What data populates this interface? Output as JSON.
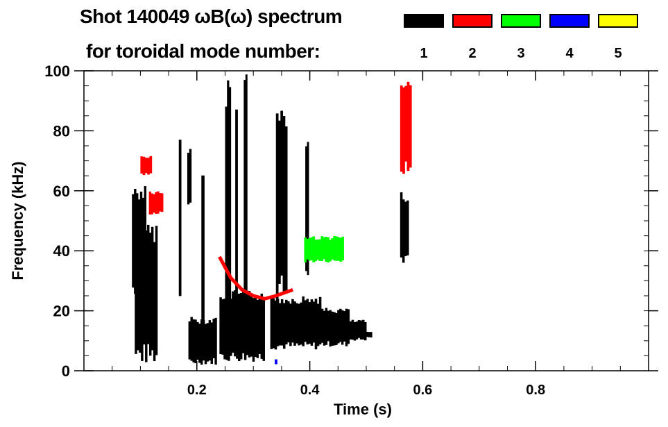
{
  "chart_data": {
    "type": "heatmap",
    "title": "Shot 140049 ωB(ω) spectrum",
    "subtitle": "for toroidal mode number:",
    "xlabel": "Time (s)",
    "ylabel": "Frequency (kHz)",
    "xlim": [
      0,
      1.0
    ],
    "ylim": [
      0,
      100
    ],
    "xticks": [
      {
        "v": 0.2,
        "label": "0.2"
      },
      {
        "v": 0.4,
        "label": "0.4"
      },
      {
        "v": 0.6,
        "label": "0.6"
      },
      {
        "v": 0.8,
        "label": "0.8"
      }
    ],
    "yticks": [
      {
        "v": 0,
        "label": "0"
      },
      {
        "v": 20,
        "label": "20"
      },
      {
        "v": 40,
        "label": "40"
      },
      {
        "v": 60,
        "label": "60"
      },
      {
        "v": 80,
        "label": "80"
      },
      {
        "v": 100,
        "label": "100"
      }
    ],
    "legend": [
      {
        "mode": "1",
        "color": "#000000"
      },
      {
        "mode": "2",
        "color": "#ff0000"
      },
      {
        "mode": "3",
        "color": "#00ff00"
      },
      {
        "mode": "4",
        "color": "#0000ff"
      },
      {
        "mode": "5",
        "color": "#ffff00"
      }
    ],
    "legend_placement": "top-right",
    "patches": [
      {
        "mode": "1",
        "t": [
          0.085,
          0.11
        ],
        "f": [
          25,
          62
        ]
      },
      {
        "mode": "1",
        "t": [
          0.09,
          0.13
        ],
        "f": [
          2,
          50
        ]
      },
      {
        "mode": "1",
        "t": [
          0.168,
          0.172
        ],
        "f": [
          20,
          80
        ]
      },
      {
        "mode": "1",
        "t": [
          0.183,
          0.19
        ],
        "f": [
          55,
          75
        ]
      },
      {
        "mode": "1",
        "t": [
          0.208,
          0.213
        ],
        "f": [
          10,
          74
        ]
      },
      {
        "mode": "1",
        "t": [
          0.25,
          0.26
        ],
        "f": [
          10,
          100
        ]
      },
      {
        "mode": "1",
        "t": [
          0.268,
          0.272
        ],
        "f": [
          5,
          96
        ]
      },
      {
        "mode": "1",
        "t": [
          0.283,
          0.289
        ],
        "f": [
          10,
          100
        ]
      },
      {
        "mode": "1",
        "t": [
          0.34,
          0.36
        ],
        "f": [
          22,
          90
        ]
      },
      {
        "mode": "1",
        "t": [
          0.392,
          0.398
        ],
        "f": [
          30,
          78
        ]
      },
      {
        "mode": "1",
        "t": [
          0.56,
          0.575
        ],
        "f": [
          35,
          60
        ]
      },
      {
        "mode": "1",
        "t": [
          0.185,
          0.235
        ],
        "f": [
          2,
          18
        ]
      },
      {
        "mode": "1",
        "t": [
          0.24,
          0.32
        ],
        "f": [
          3,
          27
        ]
      },
      {
        "mode": "1",
        "t": [
          0.33,
          0.42
        ],
        "f": [
          7,
          25
        ]
      },
      {
        "mode": "1",
        "t": [
          0.42,
          0.47
        ],
        "f": [
          8,
          21
        ]
      },
      {
        "mode": "1",
        "t": [
          0.47,
          0.5
        ],
        "f": [
          10,
          17
        ]
      },
      {
        "mode": "1",
        "t": [
          0.5,
          0.51
        ],
        "f": [
          11,
          13
        ]
      },
      {
        "mode": "2",
        "t": [
          0.1,
          0.12
        ],
        "f": [
          65,
          72
        ]
      },
      {
        "mode": "2",
        "t": [
          0.115,
          0.14
        ],
        "f": [
          52,
          60
        ]
      },
      {
        "mode": "2",
        "t": [
          0.56,
          0.58
        ],
        "f": [
          65,
          98
        ]
      },
      {
        "mode": "3",
        "t": [
          0.39,
          0.46
        ],
        "f": [
          36,
          45
        ]
      },
      {
        "mode": "4",
        "t": [
          0.338,
          0.342
        ],
        "f": [
          2,
          4
        ]
      }
    ],
    "chirps": [
      {
        "mode": "2",
        "t": [
          0.24,
          0.26,
          0.28,
          0.3,
          0.32,
          0.34,
          0.37
        ],
        "f": [
          38,
          31,
          27,
          25,
          24,
          25,
          27
        ]
      }
    ]
  }
}
